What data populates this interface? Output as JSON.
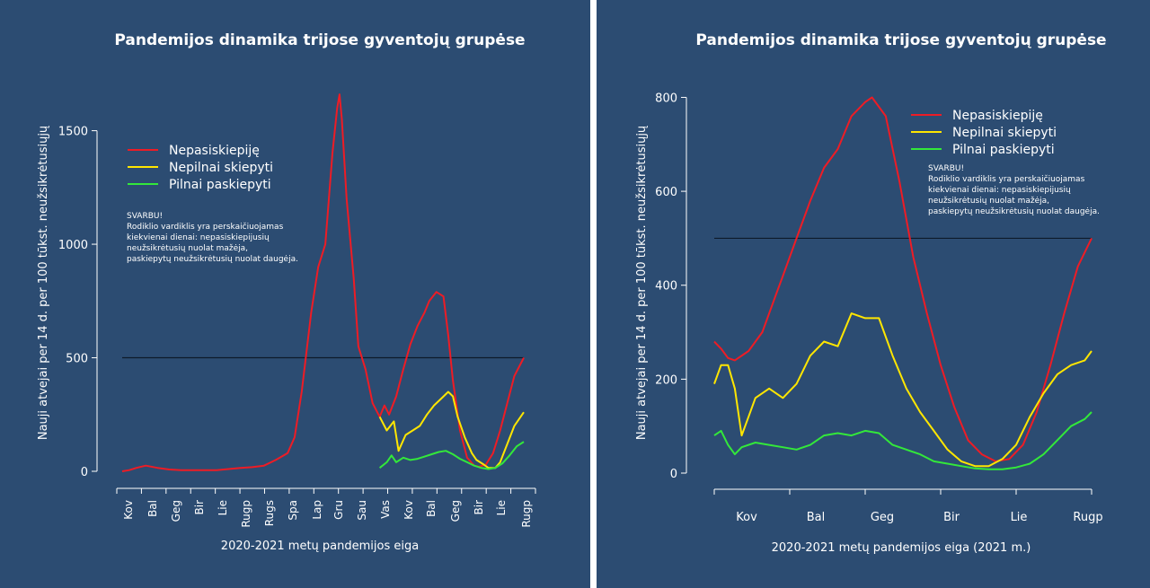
{
  "chart_data": [
    {
      "type": "line",
      "title": "Pandemijos dinamika trijose gyventojų grupėse",
      "xlabel": "2020-2021 metų pandemijos eiga",
      "ylabel": "Nauji atvejai per 14 d. per 100 tūkst. neužsikrėtusiųjų",
      "ylim": [
        0,
        1700
      ],
      "yticks": [
        0,
        500,
        1000,
        1500
      ],
      "categories": [
        "Kov",
        "Bal",
        "Geg",
        "Bir",
        "Lie",
        "Rugp",
        "Rugs",
        "Spa",
        "Lap",
        "Gru",
        "Sau",
        "Vas",
        "Kov",
        "Bal",
        "Geg",
        "Bir",
        "Lie",
        "Rugp"
      ],
      "reference_line": 500,
      "legend_position": "top-left",
      "note": [
        "SVARBU!",
        "Rodiklio vardiklis yra perskaičiuojamas",
        "kiekvienai dienai: nepasiskiepijusių",
        "neužsikrėtusių nuolat mažėja,",
        "paskiepytų neužsikrėtusių nuolat daugėja."
      ],
      "series": [
        {
          "name": "Nepasiskiepiję",
          "color": "#ee1c25",
          "x": [
            0,
            0.3,
            0.6,
            1,
            1.5,
            2,
            2.5,
            3,
            3.5,
            4,
            4.5,
            5,
            5.5,
            6,
            6.5,
            7,
            7.3,
            7.6,
            8,
            8.3,
            8.6,
            8.9,
            9.1,
            9.2,
            9.3,
            9.5,
            9.8,
            10,
            10.3,
            10.6,
            10.9,
            11.1,
            11.3,
            11.6,
            11.9,
            12.2,
            12.5,
            12.8,
            13,
            13.3,
            13.6,
            13.8,
            14,
            14.3,
            14.6,
            14.9,
            15.1,
            15.4,
            15.7,
            16,
            16.3,
            16.6,
            17
          ],
          "y": [
            0,
            5,
            15,
            25,
            15,
            8,
            5,
            5,
            5,
            5,
            10,
            15,
            18,
            25,
            50,
            80,
            150,
            350,
            700,
            900,
            1000,
            1400,
            1600,
            1660,
            1550,
            1200,
            850,
            550,
            450,
            300,
            240,
            290,
            250,
            330,
            450,
            560,
            640,
            700,
            750,
            790,
            770,
            600,
            400,
            180,
            60,
            25,
            20,
            30,
            80,
            180,
            300,
            420,
            500
          ]
        },
        {
          "name": "Nepilnai skiepyti",
          "color": "#ffe600",
          "x": [
            10.9,
            11.2,
            11.5,
            11.7,
            12,
            12.3,
            12.6,
            12.9,
            13.2,
            13.5,
            13.8,
            14,
            14.2,
            14.5,
            14.8,
            15,
            15.3,
            15.5,
            15.8,
            16,
            16.3,
            16.6,
            17
          ],
          "y": [
            240,
            180,
            220,
            90,
            160,
            180,
            200,
            250,
            290,
            320,
            350,
            330,
            240,
            150,
            80,
            50,
            30,
            15,
            15,
            40,
            120,
            200,
            260
          ]
        },
        {
          "name": "Pilnai paskiepyti",
          "color": "#33e83a",
          "x": [
            10.9,
            11.2,
            11.4,
            11.6,
            11.9,
            12.2,
            12.5,
            12.8,
            13.1,
            13.4,
            13.7,
            14,
            14.3,
            14.6,
            14.9,
            15.2,
            15.5,
            15.8,
            16.1,
            16.4,
            16.7,
            17
          ],
          "y": [
            15,
            40,
            70,
            40,
            60,
            50,
            55,
            65,
            75,
            85,
            90,
            75,
            55,
            40,
            25,
            15,
            10,
            15,
            35,
            70,
            110,
            130
          ]
        }
      ]
    },
    {
      "type": "line",
      "title": "Pandemijos dinamika trijose gyventojų grupėse",
      "xlabel": "2020-2021 metų pandemijos eiga (2021 m.)",
      "ylabel": "Nauji atvejai per 14 d. per 100 tūkst. neužsikrėtusiųjų",
      "ylim": [
        0,
        820
      ],
      "yticks": [
        0,
        200,
        400,
        600,
        800
      ],
      "categories": [
        "Kov",
        "Bal",
        "Geg",
        "Bir",
        "Lie",
        "Rugp"
      ],
      "reference_line": 500,
      "legend_position": "top-right",
      "note": [
        "SVARBU!",
        "Rodiklio vardiklis yra perskaičiuojamas",
        "kiekvienai dienai: nepasiskiepijusių",
        "neužsikrėtusių nuolat mažėja,",
        "paskiepytų neužsikrėtusių nuolat daugėja."
      ],
      "series": [
        {
          "name": "Nepasiskiepiję",
          "color": "#ee1c25",
          "x": [
            0,
            0.1,
            0.2,
            0.3,
            0.5,
            0.7,
            0.9,
            1,
            1.2,
            1.4,
            1.6,
            1.8,
            2,
            2.2,
            2.3,
            2.5,
            2.7,
            2.9,
            3.1,
            3.3,
            3.5,
            3.7,
            3.9,
            4.1,
            4.3,
            4.5,
            4.7,
            4.9,
            5.1,
            5.3,
            5.5
          ],
          "y": [
            280,
            265,
            245,
            240,
            260,
            300,
            380,
            420,
            500,
            580,
            650,
            690,
            760,
            790,
            800,
            760,
            620,
            460,
            340,
            230,
            140,
            70,
            40,
            25,
            30,
            60,
            130,
            230,
            340,
            440,
            500
          ]
        },
        {
          "name": "Nepilnai skiepyti",
          "color": "#ffe600",
          "x": [
            0,
            0.1,
            0.2,
            0.3,
            0.4,
            0.5,
            0.6,
            0.8,
            1,
            1.2,
            1.4,
            1.6,
            1.8,
            2,
            2.2,
            2.4,
            2.6,
            2.8,
            3,
            3.2,
            3.4,
            3.6,
            3.8,
            4,
            4.2,
            4.4,
            4.6,
            4.8,
            5,
            5.2,
            5.4,
            5.5
          ],
          "y": [
            190,
            230,
            230,
            180,
            80,
            120,
            160,
            180,
            160,
            190,
            250,
            280,
            270,
            340,
            330,
            330,
            250,
            180,
            130,
            90,
            50,
            25,
            15,
            15,
            30,
            60,
            120,
            170,
            210,
            230,
            240,
            260
          ]
        },
        {
          "name": "Pilnai paskiepyti",
          "color": "#33e83a",
          "x": [
            0,
            0.1,
            0.2,
            0.3,
            0.4,
            0.6,
            0.8,
            1,
            1.2,
            1.4,
            1.6,
            1.8,
            2,
            2.2,
            2.4,
            2.6,
            2.8,
            3,
            3.2,
            3.4,
            3.6,
            3.8,
            4,
            4.2,
            4.4,
            4.6,
            4.8,
            5,
            5.2,
            5.4,
            5.5
          ],
          "y": [
            80,
            90,
            60,
            40,
            55,
            65,
            60,
            55,
            50,
            60,
            80,
            85,
            80,
            90,
            85,
            60,
            50,
            40,
            25,
            20,
            15,
            10,
            8,
            8,
            12,
            20,
            40,
            70,
            100,
            115,
            130
          ]
        }
      ]
    }
  ]
}
